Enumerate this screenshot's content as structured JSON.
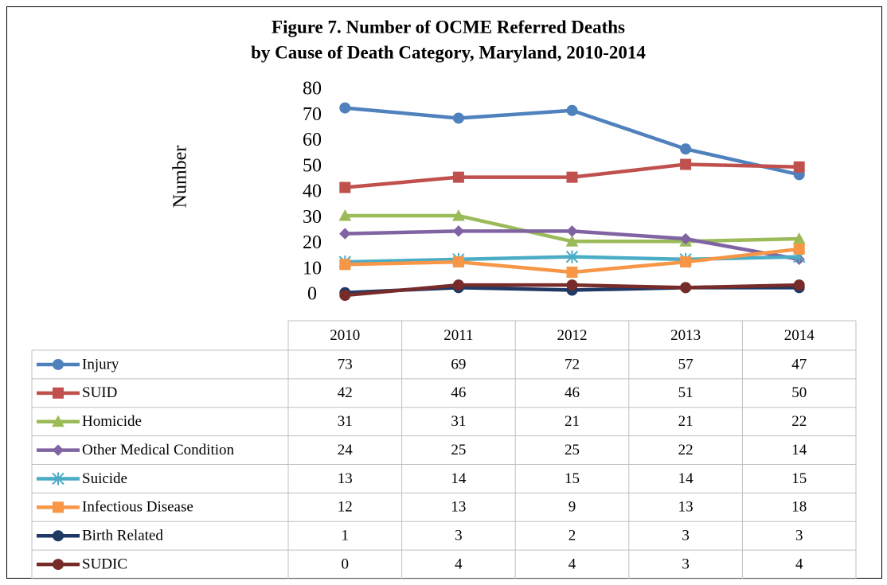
{
  "chart_data": {
    "type": "line",
    "title": "Figure 7. Number of OCME Referred Deaths",
    "subtitle": "by Cause of Death Category, Maryland, 2010-2014",
    "y_label": "Number",
    "categories": [
      "2010",
      "2011",
      "2012",
      "2013",
      "2014"
    ],
    "ylim": [
      0,
      80
    ],
    "yticks": [
      0,
      10,
      20,
      30,
      40,
      50,
      60,
      70,
      80
    ],
    "series": [
      {
        "name": "Injury",
        "color": "#4f81bd",
        "marker": "circle",
        "values": [
          73,
          69,
          72,
          57,
          47
        ]
      },
      {
        "name": "SUID",
        "color": "#c0504d",
        "marker": "square",
        "values": [
          42,
          46,
          46,
          51,
          50
        ]
      },
      {
        "name": "Homicide",
        "color": "#9bbb59",
        "marker": "triangle",
        "values": [
          31,
          31,
          21,
          21,
          22
        ]
      },
      {
        "name": "Other Medical Condition",
        "color": "#8064a2",
        "marker": "diamond",
        "values": [
          24,
          25,
          25,
          22,
          14
        ]
      },
      {
        "name": "Suicide",
        "color": "#4bacc6",
        "marker": "star",
        "values": [
          13,
          14,
          15,
          14,
          15
        ]
      },
      {
        "name": "Infectious Disease",
        "color": "#f79646",
        "marker": "square",
        "values": [
          12,
          13,
          9,
          13,
          18
        ]
      },
      {
        "name": "Birth Related",
        "color": "#1f3864",
        "marker": "circle",
        "values": [
          1,
          3,
          2,
          3,
          3
        ]
      },
      {
        "name": "SUDIC",
        "color": "#772c2a",
        "marker": "circle",
        "values": [
          0,
          4,
          4,
          3,
          4
        ]
      }
    ]
  }
}
